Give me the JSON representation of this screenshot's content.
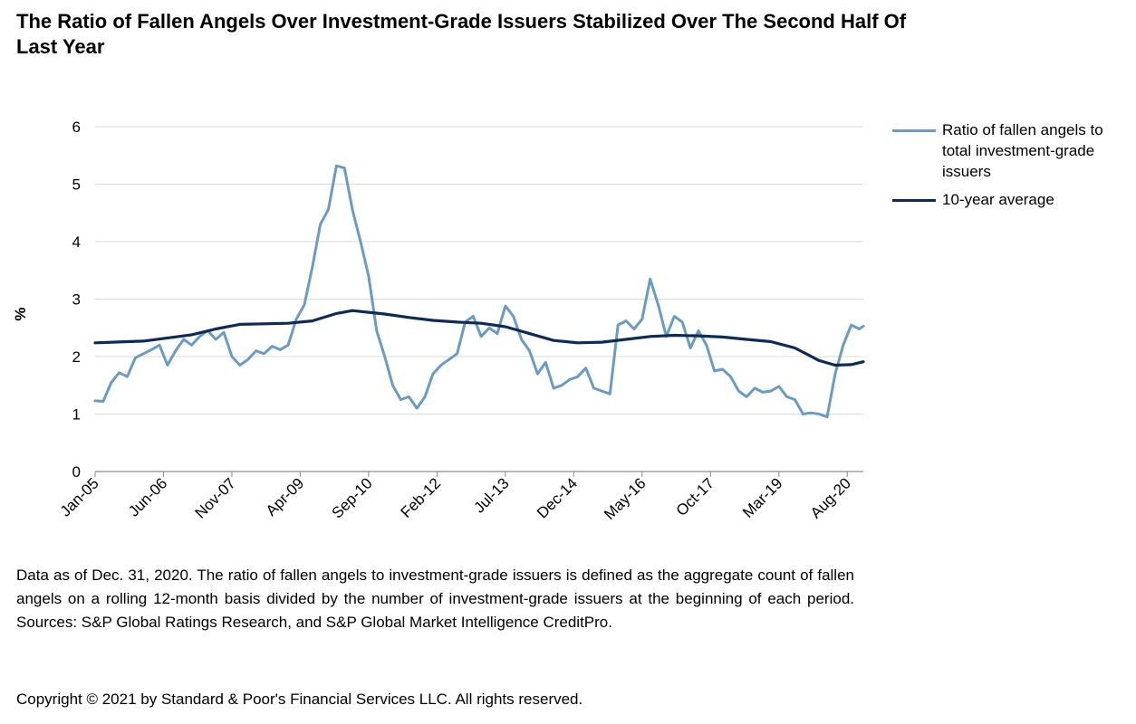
{
  "title": "The Ratio of Fallen Angels Over Investment-Grade Issuers Stabilized Over The Second Half Of Last Year",
  "footnote": "Data as of Dec. 31, 2020. The ratio of fallen angels to investment-grade issuers is defined as the aggregate count of fallen angels on a rolling 12-month basis divided by the number of investment-grade issuers at the beginning of each period. Sources: S&P Global Ratings Research, and S&P Global Market Intelligence CreditPro.",
  "copyright": "Copyright © 2021 by Standard & Poor's Financial Services LLC. All rights reserved.",
  "colors": {
    "ratio": "#6a9cc1",
    "average": "#0d2b57",
    "grid": "#d9d9d9",
    "axis": "#8c8c8c"
  },
  "chart_data": {
    "type": "line",
    "title": "",
    "xlabel": "",
    "ylabel": "%",
    "ylim": [
      0,
      6
    ],
    "yticks": [
      "0",
      "1",
      "2",
      "3",
      "4",
      "5",
      "6"
    ],
    "xlim": [
      "2005-01",
      "2020-12"
    ],
    "xtick_labels": [
      {
        "label": "Jan-05",
        "date": "2005-01"
      },
      {
        "label": "Jun-06",
        "date": "2006-06"
      },
      {
        "label": "Nov-07",
        "date": "2007-11"
      },
      {
        "label": "Apr-09",
        "date": "2009-04"
      },
      {
        "label": "Sep-10",
        "date": "2010-09"
      },
      {
        "label": "Feb-12",
        "date": "2012-02"
      },
      {
        "label": "Jul-13",
        "date": "2013-07"
      },
      {
        "label": "Dec-14",
        "date": "2014-12"
      },
      {
        "label": "May-16",
        "date": "2016-05"
      },
      {
        "label": "Oct-17",
        "date": "2017-10"
      },
      {
        "label": "Mar-19",
        "date": "2019-03"
      },
      {
        "label": "Aug-20",
        "date": "2020-08"
      }
    ],
    "grid": true,
    "legend_position": "right",
    "series": [
      {
        "name": "Ratio of fallen angels to total investment-grade issuers",
        "color": "#6a9cc1",
        "points": [
          [
            "2005-01",
            1.23
          ],
          [
            "2005-03",
            1.22
          ],
          [
            "2005-05",
            1.55
          ],
          [
            "2005-07",
            1.72
          ],
          [
            "2005-09",
            1.65
          ],
          [
            "2005-11",
            1.98
          ],
          [
            "2006-01",
            2.05
          ],
          [
            "2006-03",
            2.12
          ],
          [
            "2006-05",
            2.2
          ],
          [
            "2006-07",
            1.85
          ],
          [
            "2006-09",
            2.1
          ],
          [
            "2006-11",
            2.3
          ],
          [
            "2007-01",
            2.2
          ],
          [
            "2007-03",
            2.35
          ],
          [
            "2007-05",
            2.45
          ],
          [
            "2007-07",
            2.3
          ],
          [
            "2007-09",
            2.42
          ],
          [
            "2007-11",
            2.0
          ],
          [
            "2008-01",
            1.85
          ],
          [
            "2008-03",
            1.95
          ],
          [
            "2008-05",
            2.1
          ],
          [
            "2008-07",
            2.05
          ],
          [
            "2008-09",
            2.18
          ],
          [
            "2008-11",
            2.12
          ],
          [
            "2009-01",
            2.2
          ],
          [
            "2009-03",
            2.65
          ],
          [
            "2009-05",
            2.9
          ],
          [
            "2009-07",
            3.55
          ],
          [
            "2009-09",
            4.3
          ],
          [
            "2009-11",
            4.56
          ],
          [
            "2010-01",
            5.32
          ],
          [
            "2010-03",
            5.28
          ],
          [
            "2010-05",
            4.55
          ],
          [
            "2010-07",
            4.0
          ],
          [
            "2010-09",
            3.4
          ],
          [
            "2010-11",
            2.45
          ],
          [
            "2011-01",
            2.0
          ],
          [
            "2011-03",
            1.5
          ],
          [
            "2011-05",
            1.25
          ],
          [
            "2011-07",
            1.3
          ],
          [
            "2011-09",
            1.1
          ],
          [
            "2011-11",
            1.3
          ],
          [
            "2012-01",
            1.7
          ],
          [
            "2012-03",
            1.85
          ],
          [
            "2012-05",
            1.95
          ],
          [
            "2012-07",
            2.05
          ],
          [
            "2012-09",
            2.6
          ],
          [
            "2012-11",
            2.7
          ],
          [
            "2013-01",
            2.35
          ],
          [
            "2013-03",
            2.5
          ],
          [
            "2013-05",
            2.4
          ],
          [
            "2013-07",
            2.88
          ],
          [
            "2013-09",
            2.7
          ],
          [
            "2013-11",
            2.3
          ],
          [
            "2014-01",
            2.1
          ],
          [
            "2014-03",
            1.7
          ],
          [
            "2014-05",
            1.9
          ],
          [
            "2014-07",
            1.45
          ],
          [
            "2014-09",
            1.5
          ],
          [
            "2014-11",
            1.6
          ],
          [
            "2015-01",
            1.65
          ],
          [
            "2015-03",
            1.8
          ],
          [
            "2015-05",
            1.45
          ],
          [
            "2015-07",
            1.4
          ],
          [
            "2015-09",
            1.35
          ],
          [
            "2015-11",
            2.55
          ],
          [
            "2016-01",
            2.62
          ],
          [
            "2016-03",
            2.48
          ],
          [
            "2016-05",
            2.65
          ],
          [
            "2016-07",
            3.35
          ],
          [
            "2016-09",
            2.9
          ],
          [
            "2016-11",
            2.35
          ],
          [
            "2017-01",
            2.7
          ],
          [
            "2017-03",
            2.6
          ],
          [
            "2017-05",
            2.15
          ],
          [
            "2017-07",
            2.45
          ],
          [
            "2017-09",
            2.2
          ],
          [
            "2017-11",
            1.75
          ],
          [
            "2018-01",
            1.78
          ],
          [
            "2018-03",
            1.65
          ],
          [
            "2018-05",
            1.4
          ],
          [
            "2018-07",
            1.3
          ],
          [
            "2018-09",
            1.45
          ],
          [
            "2018-11",
            1.38
          ],
          [
            "2019-01",
            1.4
          ],
          [
            "2019-03",
            1.48
          ],
          [
            "2019-05",
            1.3
          ],
          [
            "2019-07",
            1.25
          ],
          [
            "2019-09",
            1.0
          ],
          [
            "2019-11",
            1.02
          ],
          [
            "2020-01",
            1.0
          ],
          [
            "2020-03",
            0.95
          ],
          [
            "2020-05",
            1.7
          ],
          [
            "2020-07",
            2.2
          ],
          [
            "2020-09",
            2.55
          ],
          [
            "2020-11",
            2.48
          ],
          [
            "2020-12",
            2.53
          ]
        ]
      },
      {
        "name": "10-year average",
        "color": "#0d2b57",
        "points": [
          [
            "2005-01",
            2.24
          ],
          [
            "2006-01",
            2.27
          ],
          [
            "2007-01",
            2.38
          ],
          [
            "2007-07",
            2.48
          ],
          [
            "2008-01",
            2.56
          ],
          [
            "2008-07",
            2.57
          ],
          [
            "2009-01",
            2.58
          ],
          [
            "2009-07",
            2.62
          ],
          [
            "2010-01",
            2.75
          ],
          [
            "2010-05",
            2.8
          ],
          [
            "2010-09",
            2.77
          ],
          [
            "2011-01",
            2.74
          ],
          [
            "2011-07",
            2.68
          ],
          [
            "2012-01",
            2.63
          ],
          [
            "2012-07",
            2.6
          ],
          [
            "2013-01",
            2.58
          ],
          [
            "2013-07",
            2.52
          ],
          [
            "2014-01",
            2.4
          ],
          [
            "2014-07",
            2.28
          ],
          [
            "2015-01",
            2.24
          ],
          [
            "2015-07",
            2.25
          ],
          [
            "2016-01",
            2.3
          ],
          [
            "2016-07",
            2.35
          ],
          [
            "2017-01",
            2.37
          ],
          [
            "2017-07",
            2.36
          ],
          [
            "2018-01",
            2.34
          ],
          [
            "2018-07",
            2.3
          ],
          [
            "2019-01",
            2.26
          ],
          [
            "2019-07",
            2.15
          ],
          [
            "2020-01",
            1.93
          ],
          [
            "2020-05",
            1.85
          ],
          [
            "2020-09",
            1.86
          ],
          [
            "2020-12",
            1.91
          ]
        ]
      }
    ]
  }
}
